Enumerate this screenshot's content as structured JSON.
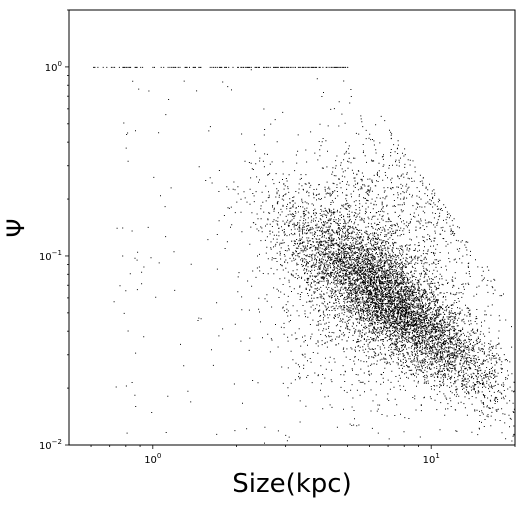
{
  "chart_data": {
    "type": "scatter",
    "title": "",
    "xlabel": "Size(kpc)",
    "ylabel": "Ψ",
    "xscale": "log",
    "yscale": "log",
    "xlim": [
      0.5,
      20
    ],
    "ylim": [
      0.01,
      2
    ],
    "grid": false,
    "legend": "none",
    "point_color": "#000000",
    "x_ticks": [
      {
        "value": 1,
        "base": "10",
        "exp": "0"
      },
      {
        "value": 10,
        "base": "10",
        "exp": "1"
      }
    ],
    "y_ticks": [
      {
        "value": 0.01,
        "base": "10",
        "exp": "−2"
      },
      {
        "value": 0.1,
        "base": "10",
        "exp": "−1"
      },
      {
        "value": 1,
        "base": "10",
        "exp": "0"
      }
    ],
    "x_minor_ticks": [
      0.6,
      0.7,
      0.8,
      0.9,
      2,
      3,
      4,
      5,
      6,
      7,
      8,
      9,
      20
    ],
    "y_minor_ticks": [
      0.02,
      0.03,
      0.04,
      0.05,
      0.06,
      0.07,
      0.08,
      0.09,
      0.2,
      0.3,
      0.4,
      0.5,
      0.6,
      0.7,
      0.8,
      0.9,
      2
    ],
    "distribution_summary": {
      "main_cluster_center": [
        8.0,
        0.06
      ],
      "ceiling_value": 1.0,
      "ceiling_x_range": [
        0.6,
        5.0
      ],
      "upper_edge_slope": -2.0,
      "point_count_approx": 40000
    }
  }
}
